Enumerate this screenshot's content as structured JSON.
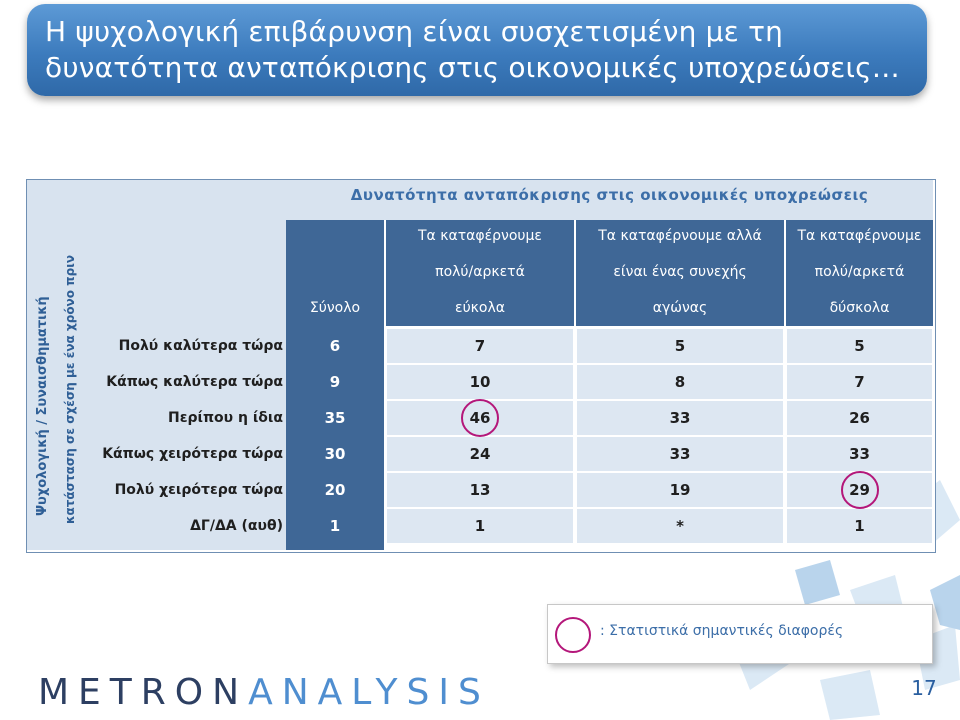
{
  "title": "Η ψυχολογική επιβάρυνση είναι συσχετισμένη με τη\nδυνατότητα ανταπόκρισης στις οικονομικές υποχρεώσεις…",
  "table": {
    "super_header": "Δυνατότητα ανταπόκρισης στις οικονομικές υποχρεώσεις",
    "row_axis_label_line1": "Ψυχολογική / Συναισθηματική",
    "row_axis_label_line2": "κατάσταση σε σχέση με ένα χρόνο πριν",
    "columns": [
      "Σύνολο",
      "Τα καταφέρνουμε πολύ/αρκετά εύκολα",
      "Τα καταφέρνουμε αλλά είναι ένας συνεχής αγώνας",
      "Τα καταφέρνουμε πολύ/αρκετά δύσκολα"
    ],
    "column_header_lines": [
      [
        "Σύνολο"
      ],
      [
        "Τα καταφέρνουμε",
        "πολύ/αρκετά",
        "εύκολα"
      ],
      [
        "Τα καταφέρνουμε αλλά",
        "είναι ένας συνεχής",
        "αγώνας"
      ],
      [
        "Τα καταφέρνουμε",
        "πολύ/αρκετά",
        "δύσκολα"
      ]
    ],
    "rows": [
      {
        "label": "Πολύ καλύτερα τώρα",
        "values": [
          "6",
          "7",
          "5",
          "5"
        ]
      },
      {
        "label": "Κάπως καλύτερα τώρα",
        "values": [
          "9",
          "10",
          "8",
          "7"
        ]
      },
      {
        "label": "Περίπου η ίδια",
        "values": [
          "35",
          "46",
          "33",
          "26"
        ]
      },
      {
        "label": "Κάπως χειρότερα τώρα",
        "values": [
          "30",
          "24",
          "33",
          "33"
        ]
      },
      {
        "label": "Πολύ χειρότερα τώρα",
        "values": [
          "20",
          "13",
          "19",
          "29"
        ]
      },
      {
        "label": "ΔΓ/ΔΑ (αυθ)",
        "values": [
          "1",
          "1",
          "*",
          "1"
        ]
      }
    ],
    "highlighted_cells": [
      {
        "row": 2,
        "col": 1
      },
      {
        "row": 4,
        "col": 3
      }
    ]
  },
  "legend": {
    "text": ": Στατιστικά σημαντικές διαφορές"
  },
  "logo": {
    "part1": "METRON",
    "part2": "ANALYSIS"
  },
  "page_number": "17",
  "colors": {
    "title_bar": "#3c7bbd",
    "header_fill": "#3f6796",
    "cell_fill": "#dde7f2",
    "highlight_circle": "#b4177a",
    "logo_dark": "#2d3f62",
    "logo_light": "#4f8ed0"
  }
}
